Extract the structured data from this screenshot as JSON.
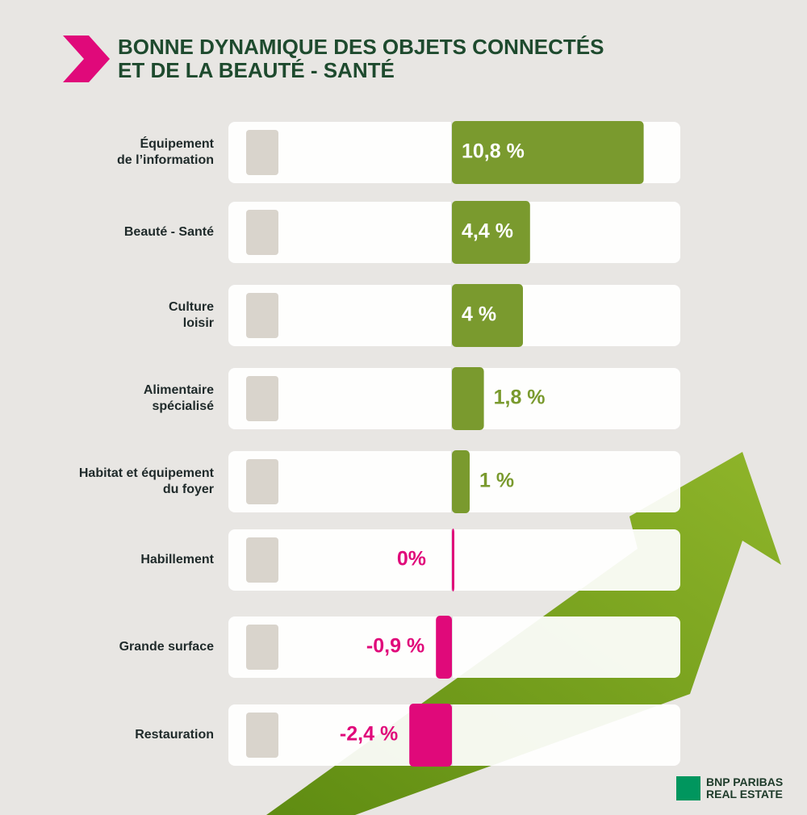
{
  "chart_data": {
    "type": "hbar",
    "title": "BONNE DYNAMIQUE DES OBJETS CONNECTÉS\nET DE LA BEAUTÉ - SANTÉ",
    "categories": [
      "Équipement\nde l’information",
      "Beauté - Santé",
      "Culture\nloisir",
      "Alimentaire\nspécialisé",
      "Habitat et équipement\ndu foyer",
      "Habillement",
      "Grande surface",
      "Restauration"
    ],
    "values": [
      10.8,
      4.4,
      4,
      1.8,
      1,
      0,
      -0.9,
      -2.4
    ],
    "value_labels": [
      "10,8 %",
      "4,4 %",
      "4 %",
      "1,8 %",
      "1 %",
      "0%",
      "-0,9 %",
      "-2,4 %"
    ],
    "colors": [
      "#7a9a2e",
      "#7a9a2e",
      "#7a9a2e",
      "#7a9a2e",
      "#7a9a2e",
      "#e0097a",
      "#e0097a",
      "#e0097a"
    ]
  },
  "footer": {
    "brand": "BNP PARIBAS\nREAL ESTATE"
  }
}
